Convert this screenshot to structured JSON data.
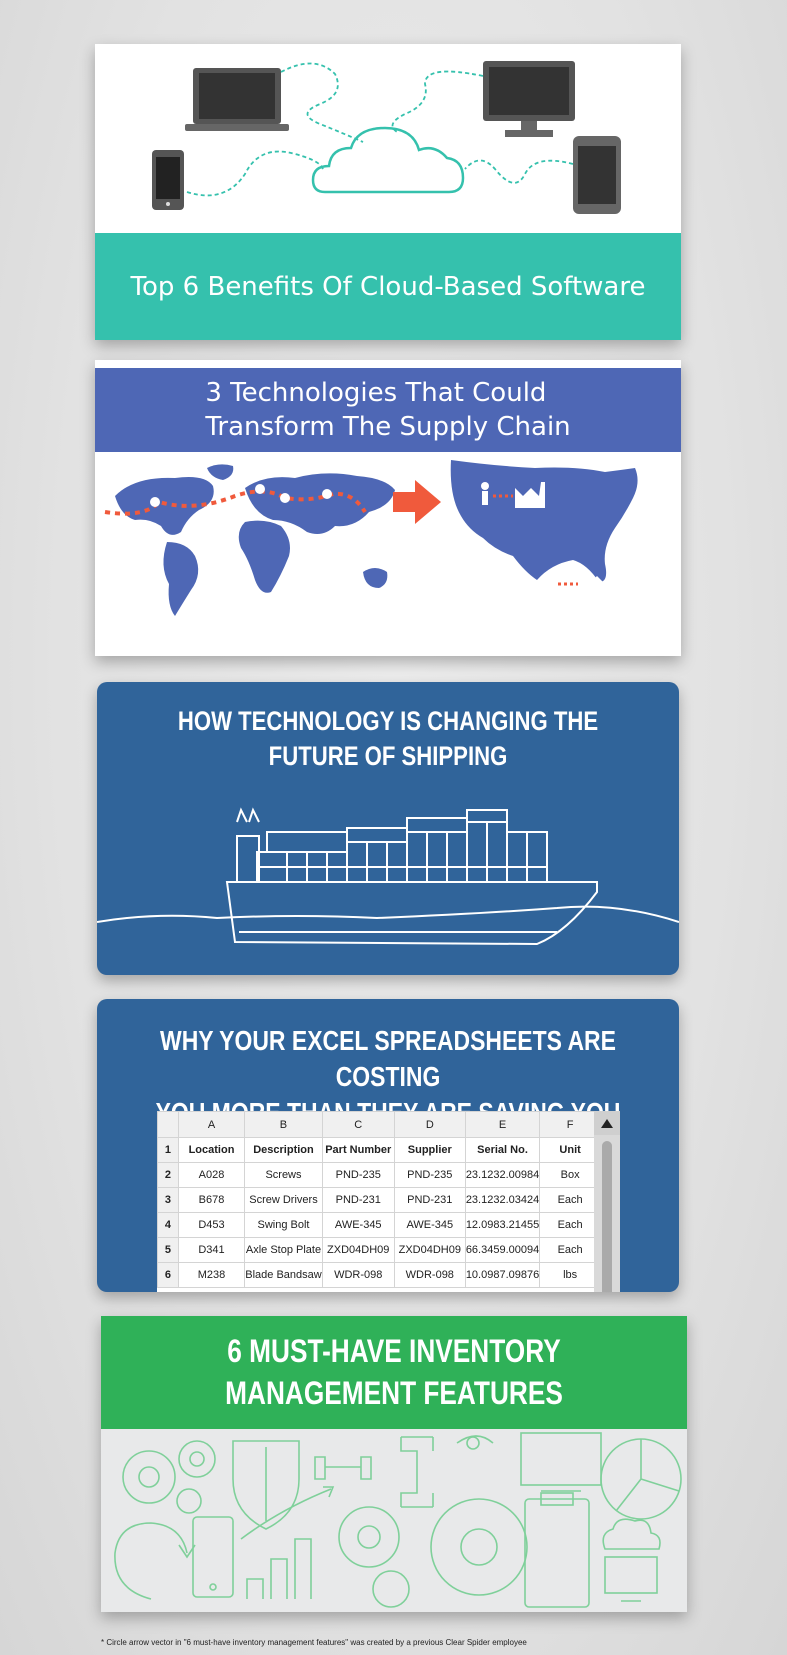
{
  "cards": {
    "cloud": {
      "title": "Top 6 Benefits Of Cloud-Based Software",
      "accent": "#35c1ad"
    },
    "supply": {
      "title_line1": "3 Technologies That Could",
      "title_line2": "Transform The Supply Chain",
      "accent": "#4e67b5",
      "arrow_color": "#f05a3c"
    },
    "shipping": {
      "title_line1": "HOW TECHNOLOGY IS CHANGING THE",
      "title_line2": "FUTURE OF SHIPPING",
      "accent": "#30649a"
    },
    "excel": {
      "title_line1": "WHY YOUR EXCEL SPREADSHEETS ARE COSTING",
      "title_line2": "YOU MORE THAN THEY ARE SAVING YOU",
      "accent": "#30649a",
      "spreadsheet": {
        "columns": [
          "A",
          "B",
          "C",
          "D",
          "E",
          "F"
        ],
        "headers": [
          "Location",
          "Description",
          "Part Number",
          "Supplier",
          "Serial No.",
          "Unit"
        ],
        "rows": [
          {
            "num": "2",
            "cells": [
              "A028",
              "Screws",
              "PND-235",
              "PND-235",
              "23.1232.00984",
              "Box"
            ]
          },
          {
            "num": "3",
            "cells": [
              "B678",
              "Screw Drivers",
              "PND-231",
              "PND-231",
              "23.1232.03424",
              "Each"
            ]
          },
          {
            "num": "4",
            "cells": [
              "D453",
              "Swing Bolt",
              "AWE-345",
              "AWE-345",
              "12.0983.21455",
              "Each"
            ]
          },
          {
            "num": "5",
            "cells": [
              "D341",
              "Axle Stop Plate",
              "ZXD04DH09",
              "ZXD04DH09",
              "66.3459.00094",
              "Each"
            ]
          },
          {
            "num": "6",
            "cells": [
              "M238",
              "Blade Bandsaw",
              "WDR-098",
              "WDR-098",
              "10.0987.09876",
              "lbs"
            ]
          }
        ]
      }
    },
    "inventory": {
      "title_line1": "6 MUST-HAVE INVENTORY",
      "title_line2": "MANAGEMENT FEATURES",
      "accent": "#2fb158"
    }
  },
  "footnote": "* Circle arrow vector in \"6 must-have inventory management features\" was created by a previous Clear Spider employee"
}
